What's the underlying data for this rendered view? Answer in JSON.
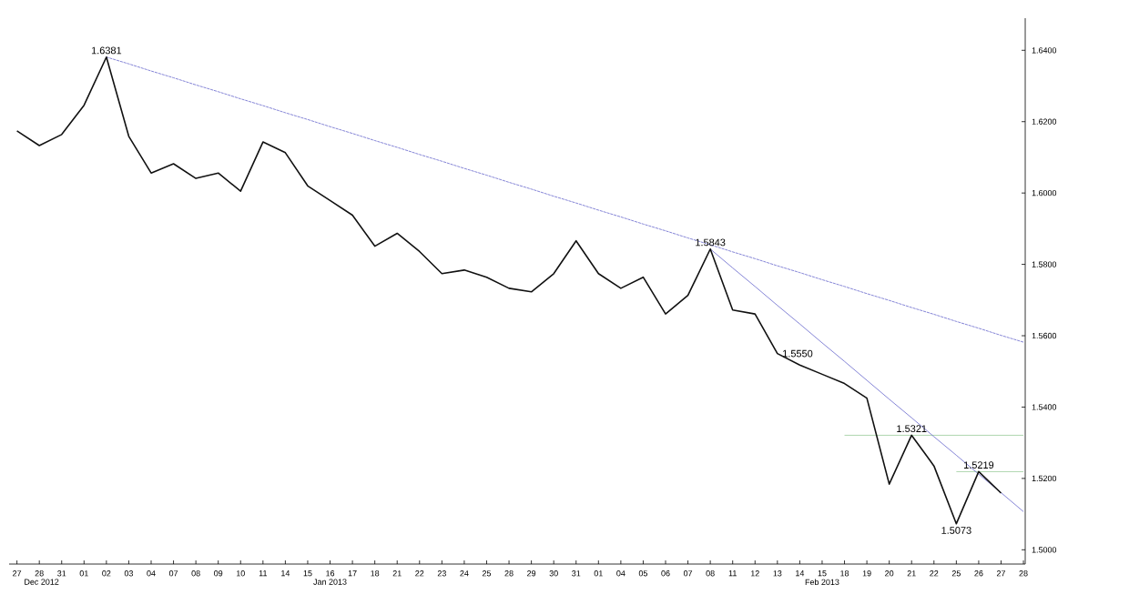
{
  "chart_data": {
    "type": "line",
    "categories": [
      "27",
      "28",
      "31",
      "01",
      "02",
      "03",
      "04",
      "07",
      "08",
      "09",
      "10",
      "11",
      "14",
      "15",
      "16",
      "17",
      "18",
      "21",
      "22",
      "23",
      "24",
      "25",
      "28",
      "29",
      "30",
      "31",
      "01",
      "04",
      "05",
      "06",
      "07",
      "08",
      "11",
      "12",
      "13",
      "14",
      "15",
      "18",
      "19",
      "20",
      "21",
      "22",
      "25",
      "26",
      "27",
      "28"
    ],
    "series": [
      {
        "color": "#111111",
        "line_style": "solid",
        "values": [
          1.6174,
          1.6133,
          1.6164,
          1.6246,
          1.6381,
          1.6159,
          1.6056,
          1.6082,
          1.6041,
          1.6056,
          1.6005,
          1.6143,
          1.6113,
          1.602,
          1.5979,
          1.5938,
          1.5851,
          1.5887,
          1.5836,
          1.5774,
          1.5784,
          1.5764,
          1.5733,
          1.5723,
          1.5774,
          1.5866,
          1.5774,
          1.5733,
          1.5764,
          1.5661,
          1.5713,
          1.5843,
          1.5672,
          1.5661,
          1.555,
          1.5518,
          1.5492,
          1.5466,
          1.5425,
          1.5184,
          1.5321,
          1.5235,
          1.5073,
          1.5219,
          1.5159,
          null
        ]
      },
      {
        "color": "#6666cc",
        "line_style": "dotted",
        "values": [
          null,
          null,
          null,
          null,
          1.6381,
          1.6362,
          1.6342,
          1.6323,
          1.6303,
          1.6284,
          1.6264,
          1.6245,
          1.6225,
          1.6206,
          1.6186,
          1.6167,
          1.6147,
          1.6128,
          1.6108,
          1.6089,
          1.6069,
          1.605,
          1.603,
          1.6011,
          1.5991,
          1.5972,
          1.5952,
          1.5933,
          1.5913,
          1.5894,
          1.5874,
          1.5855,
          1.5835,
          1.5816,
          1.5796,
          1.5777,
          1.5757,
          1.5738,
          1.5718,
          1.5699,
          1.5679,
          1.566,
          1.564,
          1.5621,
          1.5601,
          1.5582
        ]
      },
      {
        "color": "#6666cc",
        "line_style": "solid",
        "values": [
          null,
          null,
          null,
          null,
          null,
          null,
          null,
          null,
          null,
          null,
          null,
          null,
          null,
          null,
          null,
          null,
          null,
          null,
          null,
          null,
          null,
          null,
          null,
          null,
          null,
          null,
          null,
          null,
          null,
          null,
          null,
          1.5843,
          1.579,
          1.5738,
          1.5685,
          1.5633,
          1.558,
          1.5528,
          1.5475,
          1.5422,
          1.537,
          1.5317,
          1.5265,
          1.5212,
          1.516,
          1.5107
        ]
      },
      {
        "color": "#99cc99",
        "line_style": "solid",
        "values": [
          null,
          null,
          null,
          null,
          null,
          null,
          null,
          null,
          null,
          null,
          null,
          null,
          null,
          null,
          null,
          null,
          null,
          null,
          null,
          null,
          null,
          null,
          null,
          null,
          null,
          null,
          null,
          null,
          null,
          null,
          null,
          null,
          null,
          null,
          null,
          null,
          null,
          1.5321,
          1.5321,
          1.5321,
          1.5321,
          1.5321,
          1.5321,
          1.5321,
          1.5321,
          1.5321
        ]
      },
      {
        "color": "#99cc99",
        "line_style": "solid",
        "values": [
          null,
          null,
          null,
          null,
          null,
          null,
          null,
          null,
          null,
          null,
          null,
          null,
          null,
          null,
          null,
          null,
          null,
          null,
          null,
          null,
          null,
          null,
          null,
          null,
          null,
          null,
          null,
          null,
          null,
          null,
          null,
          null,
          null,
          null,
          null,
          null,
          null,
          null,
          null,
          null,
          null,
          null,
          1.5219,
          1.5219,
          1.5219,
          1.5219
        ]
      }
    ],
    "ylim": [
      1.496,
      1.649
    ],
    "yticks": [
      {
        "value": 1.5,
        "label": "1.5000"
      },
      {
        "value": 1.52,
        "label": "1.5200"
      },
      {
        "value": 1.54,
        "label": "1.5400"
      },
      {
        "value": 1.56,
        "label": "1.5600"
      },
      {
        "value": 1.58,
        "label": "1.5800"
      },
      {
        "value": 1.6,
        "label": "1.6000"
      },
      {
        "value": 1.62,
        "label": "1.6200"
      },
      {
        "value": 1.64,
        "label": "1.6400"
      }
    ],
    "annotations": [
      {
        "text": "1.6381",
        "y": 1.6381
      },
      {
        "text": "1.5843",
        "y": 1.5843
      },
      {
        "text": "1.5550",
        "y": 1.555
      },
      {
        "text": "1.5321",
        "y": 1.5321
      },
      {
        "text": "1.5219",
        "y": 1.5219
      },
      {
        "text": "1.5073",
        "y": 1.5073
      },
      "Dec 2012",
      "Jan 2013",
      "Feb 2013"
    ],
    "grid": false
  }
}
